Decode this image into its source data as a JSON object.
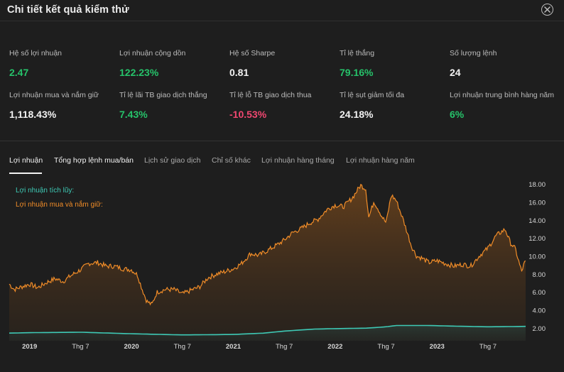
{
  "window": {
    "title": "Chi tiết kết quả kiểm thử",
    "close_icon": "close-circle-icon"
  },
  "stats": [
    {
      "label": "Hệ số lợi nhuận",
      "value": "2.47",
      "color": "#26c26a"
    },
    {
      "label": "Lợi nhuận cộng dồn",
      "value": "122.23%",
      "color": "#26c26a"
    },
    {
      "label": "Hệ số Sharpe",
      "value": "0.81",
      "color": "#f2f2f2"
    },
    {
      "label": "Tỉ lệ thắng",
      "value": "79.16%",
      "color": "#26c26a"
    },
    {
      "label": "Số lượng lệnh",
      "value": "24",
      "color": "#f2f2f2"
    },
    {
      "label": "Lợi nhuận mua và nắm giữ",
      "value": "1,118.43%",
      "color": "#f2f2f2"
    },
    {
      "label": "Tỉ lệ lãi TB giao dịch thắng",
      "value": "7.43%",
      "color": "#26c26a"
    },
    {
      "label": "Tỉ lệ lỗ TB giao dịch thua",
      "value": "-10.53%",
      "color": "#f04770"
    },
    {
      "label": "Tỉ lệ sụt giảm tối đa",
      "value": "24.18%",
      "color": "#f2f2f2"
    },
    {
      "label": "Lợi nhuận trung bình hàng năm",
      "value": "6%",
      "color": "#26c26a"
    }
  ],
  "tabs": [
    {
      "label": "Lợi nhuận",
      "active": true
    },
    {
      "label": "Tổng hợp lệnh mua/bán",
      "active": false
    },
    {
      "label": "Lịch sử giao dịch",
      "active": false
    },
    {
      "label": "Chỉ số khác",
      "active": false
    },
    {
      "label": "Lợi nhuận hàng tháng",
      "active": false
    },
    {
      "label": "Lợi nhuận hàng năm",
      "active": false
    }
  ],
  "chart_data": {
    "type": "area",
    "legend": [
      {
        "label": "Lợi nhuận tích lũy:",
        "color": "#3ec9b5"
      },
      {
        "label": "Lợi nhuận mua và nắm giữ:",
        "color": "#f08c28"
      }
    ],
    "y_ticks": [
      "18.00",
      "16.00",
      "14.00",
      "12.00",
      "10.00",
      "8.00",
      "6.00",
      "4.00",
      "2.00"
    ],
    "ylim": [
      0.6,
      18.6
    ],
    "x_ticks": [
      {
        "label": "2019",
        "t": 2019.0
      },
      {
        "label": "Thg 7",
        "t": 2019.5
      },
      {
        "label": "2020",
        "t": 2020.0
      },
      {
        "label": "Thg 7",
        "t": 2020.5
      },
      {
        "label": "2021",
        "t": 2021.0
      },
      {
        "label": "Thg 7",
        "t": 2021.5
      },
      {
        "label": "2022",
        "t": 2022.0
      },
      {
        "label": "Thg 7",
        "t": 2022.5
      },
      {
        "label": "2023",
        "t": 2023.0
      },
      {
        "label": "Thg 7",
        "t": 2023.5
      }
    ],
    "xlim": [
      2018.8,
      2023.87
    ],
    "series": [
      {
        "name": "Lợi nhuận mua và nắm giữ:",
        "color": "#f08c28",
        "x": [
          2018.8,
          2018.85,
          2018.92,
          2019.0,
          2019.08,
          2019.17,
          2019.25,
          2019.33,
          2019.4,
          2019.5,
          2019.58,
          2019.67,
          2019.75,
          2019.83,
          2019.92,
          2020.0,
          2020.06,
          2020.1,
          2020.15,
          2020.2,
          2020.25,
          2020.33,
          2020.42,
          2020.5,
          2020.58,
          2020.67,
          2020.75,
          2020.83,
          2020.92,
          2021.0,
          2021.08,
          2021.17,
          2021.25,
          2021.33,
          2021.42,
          2021.5,
          2021.58,
          2021.67,
          2021.75,
          2021.83,
          2021.92,
          2022.0,
          2022.08,
          2022.17,
          2022.25,
          2022.3,
          2022.33,
          2022.38,
          2022.42,
          2022.46,
          2022.5,
          2022.55,
          2022.6,
          2022.67,
          2022.75,
          2022.8,
          2022.85,
          2022.92,
          2023.0,
          2023.08,
          2023.17,
          2023.25,
          2023.33,
          2023.42,
          2023.5,
          2023.58,
          2023.67,
          2023.72,
          2023.77,
          2023.8,
          2023.83,
          2023.86
        ],
        "y": [
          6.9,
          6.3,
          6.6,
          6.9,
          6.5,
          7.1,
          7.5,
          7.2,
          7.8,
          8.5,
          9.2,
          9.3,
          8.9,
          8.9,
          8.6,
          8.5,
          7.9,
          6.5,
          5.0,
          4.6,
          6.0,
          6.3,
          6.3,
          5.8,
          6.2,
          6.6,
          7.6,
          8.0,
          8.3,
          8.6,
          9.2,
          10.3,
          10.1,
          10.6,
          11.2,
          11.8,
          12.6,
          13.1,
          13.7,
          14.1,
          15.2,
          15.7,
          15.5,
          16.5,
          17.9,
          17.5,
          14.3,
          16.1,
          15.3,
          14.4,
          13.7,
          16.8,
          16.2,
          14.0,
          11.1,
          10.0,
          9.8,
          9.3,
          9.5,
          9.2,
          8.9,
          9.1,
          8.9,
          10.1,
          10.9,
          12.3,
          13.0,
          11.5,
          10.8,
          9.5,
          8.3,
          9.3
        ]
      },
      {
        "name": "Lợi nhuận tích lũy:",
        "color": "#3ec9b5",
        "x": [
          2018.8,
          2019.0,
          2019.5,
          2020.0,
          2020.5,
          2021.0,
          2021.3,
          2021.5,
          2021.8,
          2022.0,
          2022.3,
          2022.5,
          2022.6,
          2022.9,
          2023.2,
          2023.5,
          2023.87
        ],
        "y": [
          1.45,
          1.5,
          1.55,
          1.38,
          1.25,
          1.3,
          1.45,
          1.68,
          1.9,
          1.95,
          2.0,
          2.15,
          2.3,
          2.3,
          2.22,
          2.15,
          2.2
        ]
      }
    ]
  }
}
